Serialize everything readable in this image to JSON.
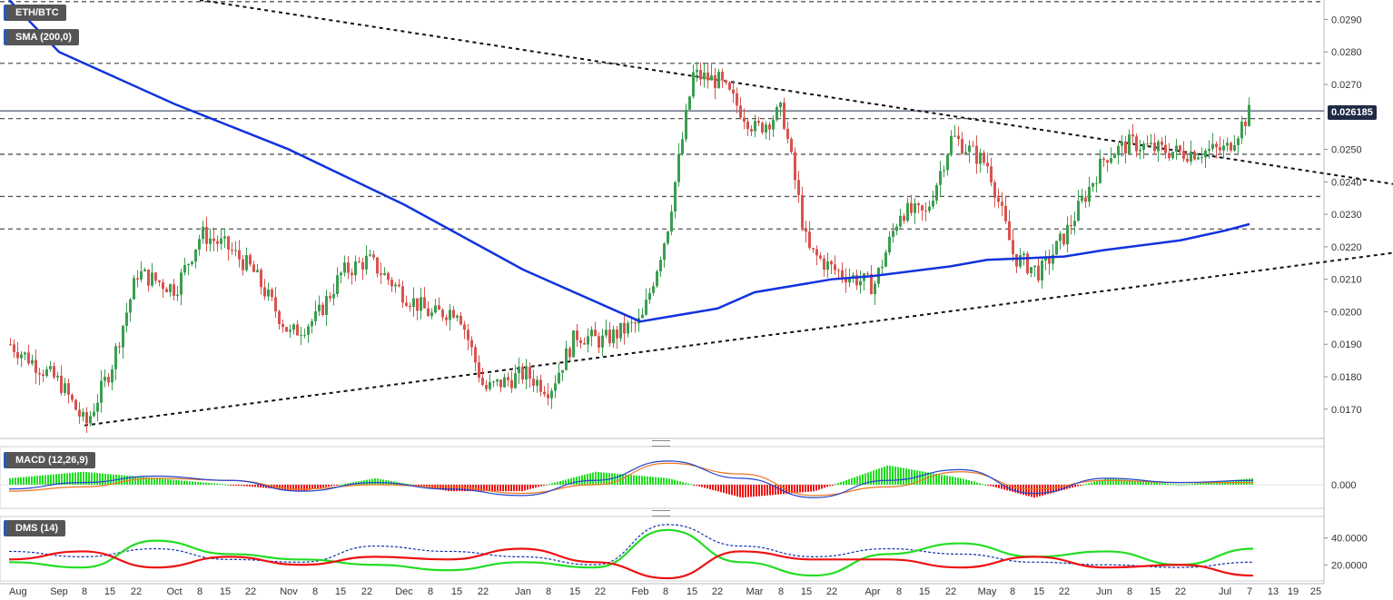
{
  "labels": {
    "pair": "ETH/BTC",
    "sma": "SMA (200,0)",
    "macd": "MACD (12,26,9)",
    "dms": "DMS (14)",
    "current_price": "0.026185"
  },
  "colors": {
    "up": "#3a9e4f",
    "down": "#d9534f",
    "sma": "#1133dd",
    "macd_line": "#2244cc",
    "signal_line": "#ee7722",
    "hist_up": "#22dd22",
    "hist_down": "#ee1111",
    "dms_plus": "#22dd22",
    "dms_minus": "#ee1111",
    "adx": "#1133aa",
    "price_line": "#1f2a44"
  },
  "chart_data": [
    {
      "type": "candlestick",
      "title": "ETH/BTC",
      "ylim": [
        0.0161,
        0.0296
      ],
      "y_ticks": [
        "0.0290",
        "0.0280",
        "0.0270",
        "0.0250",
        "0.0240",
        "0.0230",
        "0.0220",
        "0.0210",
        "0.0200",
        "0.0190",
        "0.0180",
        "0.0170"
      ],
      "x_ticks": [
        "Aug",
        "Sep",
        "8",
        "15",
        "22",
        "Oct",
        "8",
        "15",
        "22",
        "Nov",
        "8",
        "15",
        "22",
        "Dec",
        "8",
        "15",
        "22",
        "Jan",
        "8",
        "15",
        "22",
        "Feb",
        "8",
        "15",
        "22",
        "Mar",
        "8",
        "15",
        "22",
        "Apr",
        "8",
        "15",
        "22",
        "May",
        "8",
        "15",
        "22",
        "Jun",
        "8",
        "15",
        "22",
        "Jul",
        "7",
        "13",
        "19",
        "25"
      ],
      "horizontal_levels": [
        0.02955,
        0.02765,
        0.02595,
        0.02485,
        0.02355,
        0.02255
      ],
      "current_price": 0.026185,
      "trendline_down": {
        "from": [
          "Oct 8",
          0.0296
        ],
        "to": [
          "Jul 25",
          0.0243
        ]
      },
      "trendline_up": {
        "from": [
          "Sep 8",
          0.0165
        ],
        "to": [
          "Jul 25",
          0.0215
        ]
      },
      "close_path": [
        [
          "Aug",
          0.019
        ],
        [
          "Sep",
          0.0178
        ],
        [
          "Sep 8",
          0.0165
        ],
        [
          "Sep 15",
          0.0183
        ],
        [
          "Sep 22",
          0.0212
        ],
        [
          "Oct",
          0.0207
        ],
        [
          "Oct 8",
          0.0224
        ],
        [
          "Oct 15",
          0.022
        ],
        [
          "Oct 22",
          0.0213
        ],
        [
          "Nov",
          0.0193
        ],
        [
          "Nov 8",
          0.0198
        ],
        [
          "Nov 15",
          0.0212
        ],
        [
          "Nov 22",
          0.0216
        ],
        [
          "Dec",
          0.0205
        ],
        [
          "Dec 8",
          0.0199
        ],
        [
          "Dec 15",
          0.0201
        ],
        [
          "Dec 22",
          0.0176
        ],
        [
          "Jan",
          0.0181
        ],
        [
          "Jan 8",
          0.0176
        ],
        [
          "Jan 15",
          0.0193
        ],
        [
          "Jan 22",
          0.0191
        ],
        [
          "Feb",
          0.0197
        ],
        [
          "Feb 8",
          0.0225
        ],
        [
          "Feb 15",
          0.0273
        ],
        [
          "Feb 22",
          0.0271
        ],
        [
          "Mar",
          0.0256
        ],
        [
          "Mar 8",
          0.0262
        ],
        [
          "Mar 15",
          0.0219
        ],
        [
          "Mar 22",
          0.0213
        ],
        [
          "Apr",
          0.0208
        ],
        [
          "Apr 8",
          0.0231
        ],
        [
          "Apr 15",
          0.023
        ],
        [
          "Apr 22",
          0.0254
        ],
        [
          "May",
          0.0245
        ],
        [
          "May 8",
          0.0217
        ],
        [
          "May 15",
          0.0212
        ],
        [
          "May 22",
          0.0224
        ],
        [
          "Jun",
          0.0248
        ],
        [
          "Jun 8",
          0.0252
        ],
        [
          "Jun 15",
          0.025
        ],
        [
          "Jun 22",
          0.0249
        ],
        [
          "Jul",
          0.025
        ],
        [
          "Jul 7",
          0.0262
        ]
      ],
      "sma_200": [
        [
          "Aug",
          0.0296
        ],
        [
          "Sep",
          0.028
        ],
        [
          "Oct",
          0.0264
        ],
        [
          "Nov",
          0.025
        ],
        [
          "Dec",
          0.0233
        ],
        [
          "Jan",
          0.0213
        ],
        [
          "Feb",
          0.0197
        ],
        [
          "Feb 22",
          0.0201
        ],
        [
          "Mar",
          0.0206
        ],
        [
          "Mar 22",
          0.021
        ],
        [
          "Apr",
          0.0211
        ],
        [
          "Apr 22",
          0.0214
        ],
        [
          "May",
          0.0216
        ],
        [
          "May 22",
          0.0217
        ],
        [
          "Jun",
          0.0219
        ],
        [
          "Jun 22",
          0.0222
        ],
        [
          "Jul",
          0.0225
        ],
        [
          "Jul 7",
          0.0227
        ]
      ]
    },
    {
      "type": "line",
      "title": "MACD (12,26,9)",
      "y_ticks": [
        "0.000"
      ],
      "series": [
        {
          "name": "MACD",
          "values": [
            -0.0002,
            0.0001,
            0.0004,
            0.0002,
            -0.0003,
            0.0001,
            -0.0002,
            -0.0005,
            0.0002,
            0.0011,
            0.0003,
            -0.0006,
            0.0002,
            0.0007,
            -0.0004,
            0.0003,
            0.0001,
            0.0002
          ]
        },
        {
          "name": "Signal",
          "values": [
            -0.0003,
            -0.0001,
            0.0003,
            0.0002,
            -0.0002,
            0.0,
            -0.0001,
            -0.0004,
            0.0,
            0.001,
            0.0005,
            -0.0005,
            -0.0001,
            0.0006,
            -0.0002,
            0.0002,
            0.0001,
            0.0001
          ]
        }
      ]
    },
    {
      "type": "line",
      "title": "DMS (14)",
      "y_ticks": [
        "40.0000",
        "20.0000"
      ],
      "series": [
        {
          "name": "+DI",
          "values": [
            22,
            18,
            38,
            28,
            24,
            20,
            16,
            22,
            18,
            46,
            22,
            12,
            28,
            36,
            26,
            30,
            20,
            32
          ]
        },
        {
          "name": "-DI",
          "values": [
            24,
            30,
            18,
            26,
            20,
            26,
            24,
            32,
            22,
            10,
            30,
            24,
            24,
            18,
            26,
            18,
            20,
            12
          ]
        },
        {
          "name": "ADX",
          "values": [
            30,
            26,
            32,
            24,
            22,
            34,
            30,
            26,
            20,
            50,
            34,
            26,
            32,
            28,
            22,
            20,
            18,
            22
          ]
        }
      ]
    }
  ]
}
